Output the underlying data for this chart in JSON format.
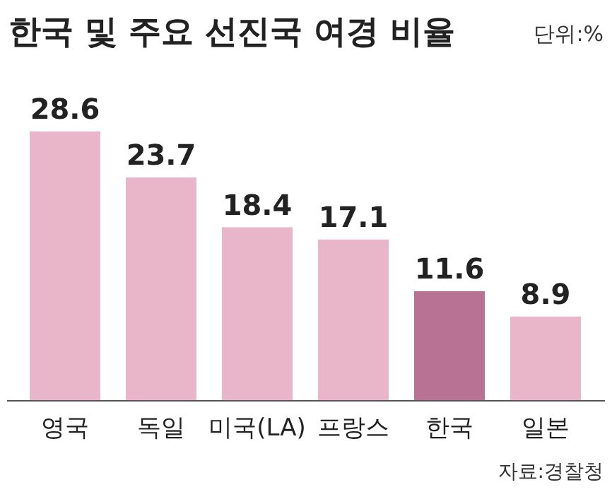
{
  "chart_data": {
    "type": "bar",
    "title": "한국 및 주요 선진국 여경 비율",
    "subtitle": "단위:%",
    "categories": [
      "영국",
      "독일",
      "미국(LA)",
      "프랑스",
      "한국",
      "일본"
    ],
    "values": [
      28.6,
      23.7,
      18.4,
      17.1,
      11.6,
      8.9
    ],
    "colors": [
      "#e8b5c9",
      "#e8b5c9",
      "#e8b5c9",
      "#e8b5c9",
      "#b87293",
      "#e8b5c9"
    ],
    "data_labels": true,
    "annotations": [
      "자료:경찰청"
    ]
  }
}
